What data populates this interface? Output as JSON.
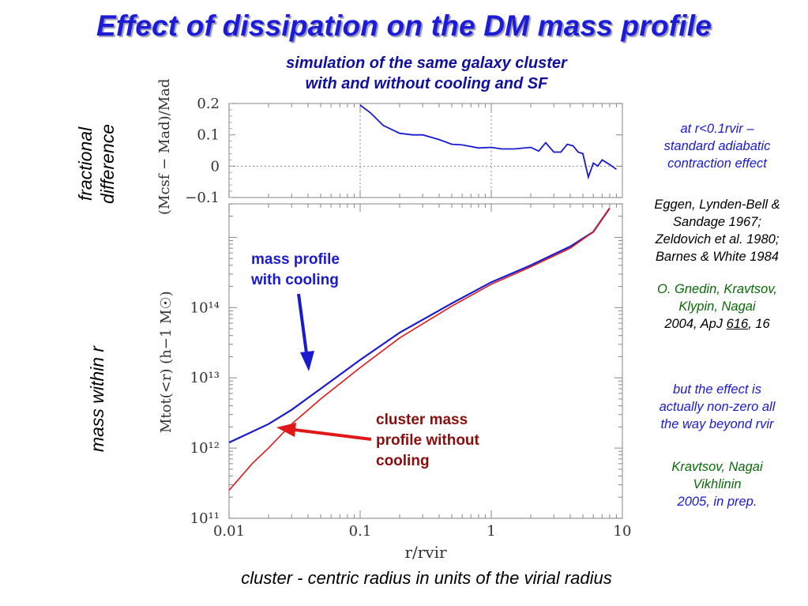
{
  "title": "Effect of dissipation on the DM mass profile",
  "subtitle": [
    "simulation of the same galaxy cluster",
    "with and without cooling and SF"
  ],
  "left_labels": {
    "top": [
      "fractional",
      "difference"
    ],
    "bottom": "mass within r"
  },
  "annotations": {
    "with_cooling": [
      "mass profile",
      "with cooling"
    ],
    "without_cooling": [
      "cluster mass",
      "profile without",
      "cooling"
    ]
  },
  "notes": {
    "adiabatic": [
      "at r<0.1rvir –",
      "standard adiabatic",
      "contraction effect"
    ],
    "refs1": [
      "Eggen, Lynden-Bell &",
      "Sandage 1967;",
      "Zeldovich et al. 1980;",
      "Barnes & White 1984"
    ],
    "gnedin": [
      "O. Gnedin, Kravtsov,",
      "Klypin, Nagai"
    ],
    "gnedin_cite": {
      "pre": "2004, ApJ ",
      "vol": "616",
      "post": ", 16"
    },
    "effect": [
      "but the effect is",
      "actually non-zero all",
      "the way beyond rvir"
    ],
    "kravtsov": [
      "Kravtsov, Nagai",
      "Vikhlinin",
      "2005, in prep."
    ]
  },
  "caption": "cluster - centric radius in units of the virial radius",
  "colors": {
    "title": "#1c1cd8",
    "with_cooling": "#1a1ad0",
    "without_cooling": "#e01818",
    "note_green": "#0a6a0a"
  },
  "chart_data": [
    {
      "type": "line",
      "panel": "top",
      "ylabel": "(Mcsf − Mad)/Mad",
      "ylim": [
        -0.1,
        0.2
      ],
      "yticks": [
        "0.2",
        "0.1",
        "0",
        "−0.1"
      ],
      "xscale": "log",
      "xlim": [
        0.01,
        10
      ],
      "grid": "dotted at x=0.1, x=1 and y=0",
      "series": [
        {
          "x": [
            0.1,
            0.12,
            0.15,
            0.2,
            0.25,
            0.3,
            0.4,
            0.5,
            0.6,
            0.8,
            1.0,
            1.2,
            1.5,
            2.0,
            2.3,
            2.6,
            3.0,
            3.4,
            3.8,
            4.2,
            4.6,
            5.0,
            5.5,
            6.0,
            6.5,
            7.0,
            8.0,
            9.0
          ],
          "y": [
            0.195,
            0.17,
            0.13,
            0.105,
            0.1,
            0.1,
            0.085,
            0.07,
            0.068,
            0.058,
            0.06,
            0.055,
            0.055,
            0.06,
            0.048,
            0.075,
            0.045,
            0.045,
            0.07,
            0.065,
            0.045,
            0.04,
            -0.035,
            0.01,
            0.0,
            0.02,
            0.005,
            -0.01
          ]
        }
      ]
    },
    {
      "type": "line",
      "panel": "bottom",
      "xlabel": "r/rvir",
      "ylabel": "Mtot(<r) (h−1 M☉)",
      "xscale": "log",
      "yscale": "log",
      "xlim": [
        0.01,
        10
      ],
      "ylim": [
        100000000000.0,
        3000000000000000.0
      ],
      "xticks": [
        "0.01",
        "0.1",
        "1",
        "10"
      ],
      "yticks": [
        "10¹¹",
        "10¹²",
        "10¹³",
        "10¹⁴"
      ],
      "series": [
        {
          "name": "mass profile with cooling",
          "x": [
            0.01,
            0.02,
            0.03,
            0.05,
            0.1,
            0.2,
            0.5,
            1.0,
            2.0,
            4.0,
            6.0,
            8.0
          ],
          "y": [
            1200000000000.0,
            2200000000000.0,
            3500000000000.0,
            7000000000000.0,
            18000000000000.0,
            44000000000000.0,
            115000000000000.0,
            230000000000000.0,
            400000000000000.0,
            740000000000000.0,
            1200000000000000.0,
            2600000000000000.0
          ]
        },
        {
          "name": "cluster mass profile without cooling",
          "x": [
            0.01,
            0.015,
            0.02,
            0.03,
            0.05,
            0.1,
            0.2,
            0.5,
            1.0,
            2.0,
            4.0,
            6.0,
            8.0
          ],
          "y": [
            250000000000.0,
            600000000000.0,
            1000000000000.0,
            2200000000000.0,
            5000000000000.0,
            14000000000000.0,
            37000000000000.0,
            105000000000000.0,
            215000000000000.0,
            380000000000000.0,
            700000000000000.0,
            1200000000000000.0,
            2600000000000000.0
          ]
        }
      ]
    }
  ]
}
